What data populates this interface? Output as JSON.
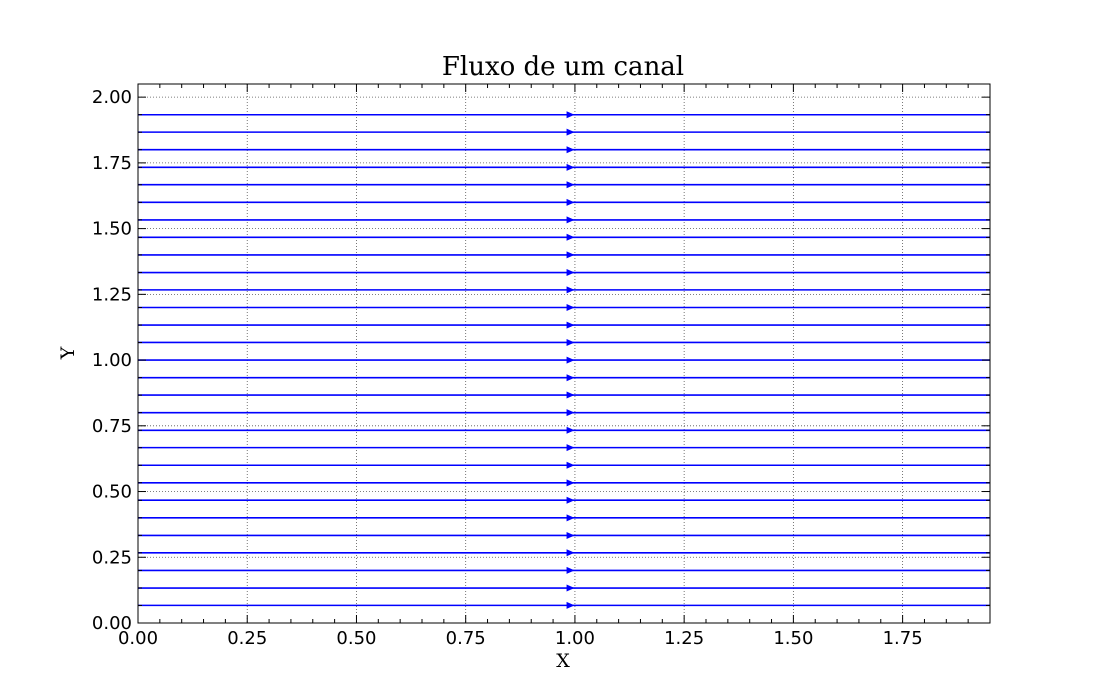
{
  "chart_data": {
    "type": "line",
    "title": "Fluxo de um canal",
    "xlabel": "X",
    "ylabel": "Y",
    "xlim": [
      0,
      1.95
    ],
    "ylim": [
      0,
      2.05
    ],
    "grid": true,
    "x_ticks": [
      "0.00",
      "0.25",
      "0.50",
      "0.75",
      "1.00",
      "1.25",
      "1.50",
      "1.75"
    ],
    "y_ticks": [
      "0.00",
      "0.25",
      "0.50",
      "0.75",
      "1.00",
      "1.25",
      "1.50",
      "1.75",
      "2.00"
    ],
    "x_tick_values": [
      0,
      0.25,
      0.5,
      0.75,
      1.0,
      1.25,
      1.5,
      1.75
    ],
    "y_tick_values": [
      0,
      0.25,
      0.5,
      0.75,
      1.0,
      1.25,
      1.5,
      1.75,
      2.0
    ],
    "y_minor_tick_values": [
      0.0667,
      0.1333,
      0.2,
      0.2667,
      0.3333,
      0.4,
      0.4667,
      0.5333,
      0.6,
      0.6667,
      0.7333,
      0.8,
      0.8667,
      0.9333,
      1.0667,
      1.1333,
      1.2,
      1.2667,
      1.3333,
      1.4,
      1.4667,
      1.5333,
      1.6,
      1.6667,
      1.7333,
      1.8,
      1.8667,
      1.9333
    ],
    "x_minor_tick_values": [
      0.05,
      0.1,
      0.15,
      0.2,
      0.3,
      0.35,
      0.4,
      0.45,
      0.55,
      0.6,
      0.65,
      0.7,
      0.8,
      0.85,
      0.9,
      0.95,
      1.05,
      1.1,
      1.15,
      1.2,
      1.3,
      1.35,
      1.4,
      1.45,
      1.55,
      1.6,
      1.65,
      1.7,
      1.8,
      1.85,
      1.9
    ],
    "streamlines": {
      "color": "#0000ff",
      "direction": "right",
      "arrow_x": 0.99,
      "x_range": [
        0,
        1.95
      ],
      "y_values": [
        0.067,
        0.133,
        0.2,
        0.267,
        0.333,
        0.4,
        0.467,
        0.533,
        0.6,
        0.667,
        0.733,
        0.8,
        0.867,
        0.933,
        1.0,
        1.067,
        1.133,
        1.2,
        1.267,
        1.333,
        1.4,
        1.467,
        1.533,
        1.6,
        1.667,
        1.733,
        1.8,
        1.867,
        1.933
      ]
    }
  }
}
